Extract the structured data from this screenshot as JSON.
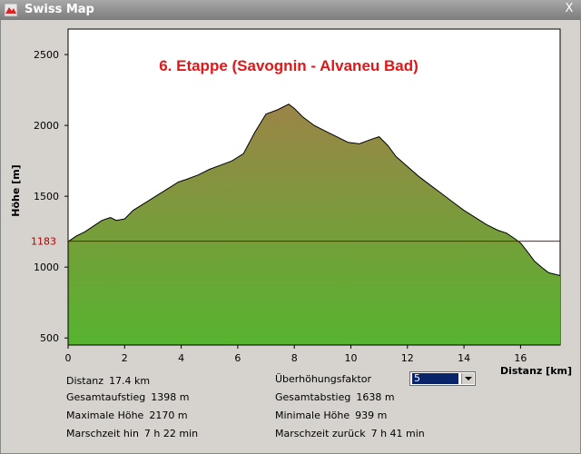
{
  "window": {
    "title": "Swiss Map",
    "close_label": "X"
  },
  "chart_data": {
    "type": "area",
    "title": "6. Etappe (Savognin - Alvaneu Bad)",
    "xlabel": "Distanz [km]",
    "ylabel": "Höhe [m]",
    "xlim": [
      0,
      17.4
    ],
    "ylim": [
      450,
      2680
    ],
    "x_ticks": [
      0,
      2,
      4,
      6,
      8,
      10,
      12,
      14,
      16
    ],
    "y_ticks": [
      500,
      1000,
      1500,
      2000,
      2500
    ],
    "reference_line": {
      "value": 1183,
      "label": "1183",
      "color": "#b00000"
    },
    "fill_top_color": "#9b8447",
    "fill_bottom_color": "#56b42f",
    "grid": false,
    "x": [
      0,
      0.3,
      0.6,
      0.9,
      1.2,
      1.5,
      1.7,
      2.0,
      2.3,
      2.7,
      3.1,
      3.5,
      3.9,
      4.2,
      4.6,
      5.0,
      5.4,
      5.8,
      6.2,
      6.6,
      7.0,
      7.4,
      7.8,
      8.0,
      8.3,
      8.7,
      9.1,
      9.5,
      9.9,
      10.3,
      10.7,
      11.0,
      11.3,
      11.6,
      12.0,
      12.4,
      12.8,
      13.2,
      13.6,
      14.0,
      14.4,
      14.8,
      15.2,
      15.5,
      15.8,
      16.0,
      16.2,
      16.5,
      16.8,
      17.0,
      17.4
    ],
    "y": [
      1180,
      1220,
      1250,
      1290,
      1330,
      1350,
      1330,
      1340,
      1400,
      1450,
      1500,
      1550,
      1600,
      1620,
      1650,
      1690,
      1720,
      1750,
      1800,
      1950,
      2080,
      2110,
      2150,
      2120,
      2060,
      2000,
      1960,
      1920,
      1880,
      1870,
      1900,
      1920,
      1860,
      1780,
      1710,
      1640,
      1580,
      1520,
      1460,
      1400,
      1350,
      1300,
      1260,
      1240,
      1200,
      1170,
      1120,
      1040,
      990,
      960,
      940
    ]
  },
  "stats": {
    "distance": {
      "label": "Distanz",
      "value": "17.4 km"
    },
    "ascent": {
      "label": "Gesamtaufstieg",
      "value": "1398 m"
    },
    "max_height": {
      "label": "Maximale Höhe",
      "value": "2170 m"
    },
    "time_forward": {
      "label": "Marschzeit hin",
      "value": "7 h 22 min"
    },
    "exaggeration": {
      "label": "Überhöhungsfaktor",
      "value": "5"
    },
    "descent": {
      "label": "Gesamtabstieg",
      "value": "1638 m"
    },
    "min_height": {
      "label": "Minimale Höhe",
      "value": "939 m"
    },
    "time_back": {
      "label": "Marschzeit zurück",
      "value": "7 h 41 min"
    }
  }
}
